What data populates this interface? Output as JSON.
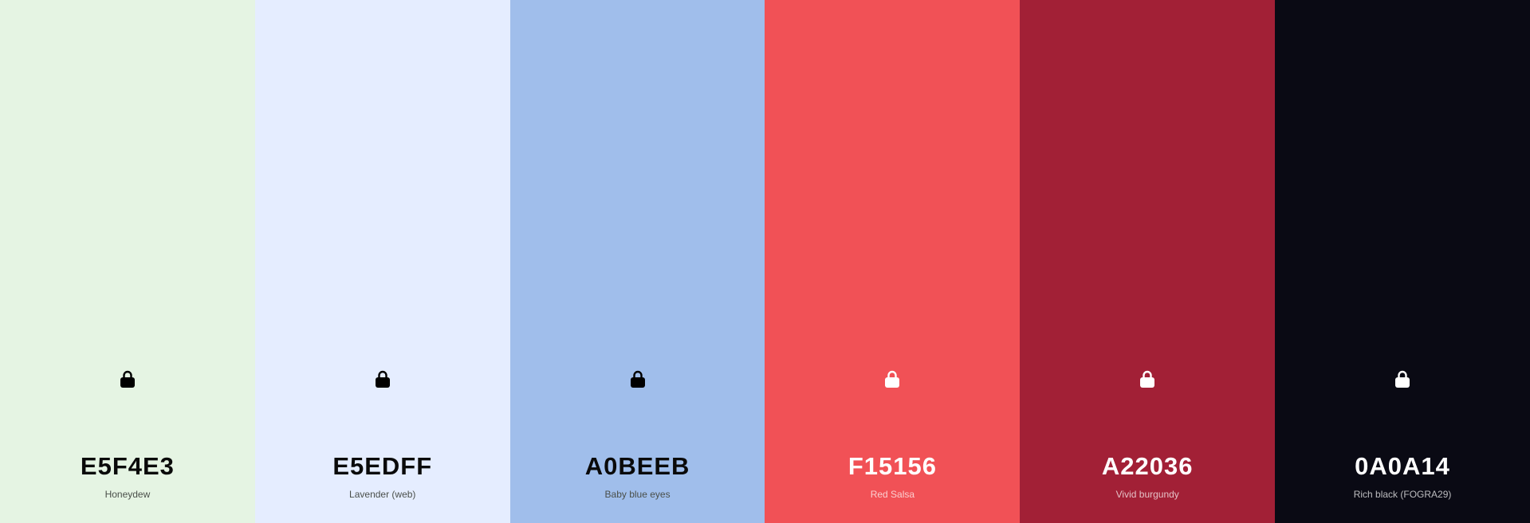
{
  "palette": {
    "swatches": [
      {
        "hex": "E5F4E3",
        "name": "Honeydew",
        "color": "#E5F4E3",
        "text_theme": "dark",
        "locked_icon": "lock-icon"
      },
      {
        "hex": "E5EDFF",
        "name": "Lavender (web)",
        "color": "#E5EDFF",
        "text_theme": "dark",
        "locked_icon": "lock-icon"
      },
      {
        "hex": "A0BEEB",
        "name": "Baby blue eyes",
        "color": "#A0BEEB",
        "text_theme": "dark",
        "locked_icon": "lock-icon"
      },
      {
        "hex": "F15156",
        "name": "Red Salsa",
        "color": "#F15156",
        "text_theme": "light",
        "locked_icon": "lock-icon"
      },
      {
        "hex": "A22036",
        "name": "Vivid burgundy",
        "color": "#A22036",
        "text_theme": "light",
        "locked_icon": "lock-icon"
      },
      {
        "hex": "0A0A14",
        "name": "Rich black (FOGRA29)",
        "color": "#0A0A14",
        "text_theme": "light",
        "locked_icon": "lock-icon"
      }
    ]
  }
}
